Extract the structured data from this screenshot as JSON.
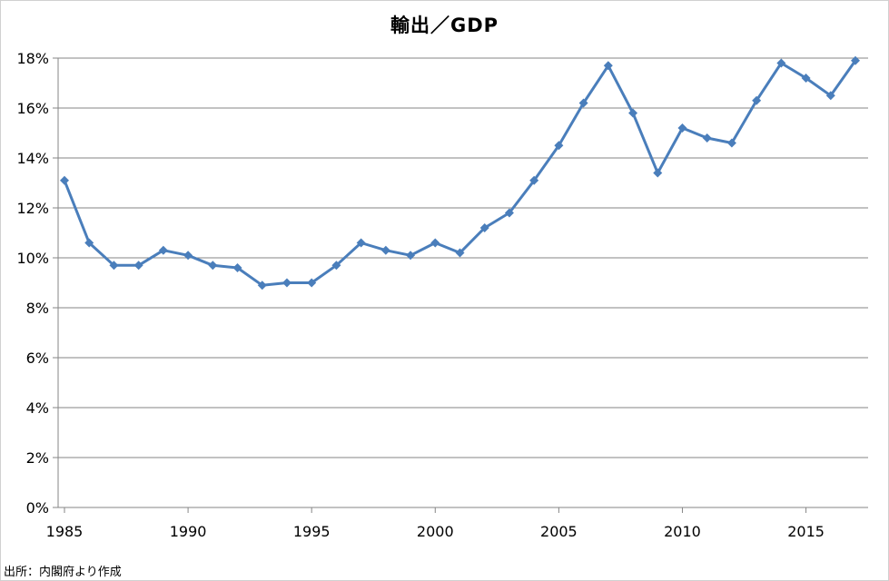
{
  "chart_data": {
    "type": "line",
    "title": "輸出／GDP",
    "xlabel": "",
    "ylabel": "",
    "x": [
      1985,
      1986,
      1987,
      1988,
      1989,
      1990,
      1991,
      1992,
      1993,
      1994,
      1995,
      1996,
      1997,
      1998,
      1999,
      2000,
      2001,
      2002,
      2003,
      2004,
      2005,
      2006,
      2007,
      2008,
      2009,
      2010,
      2011,
      2012,
      2013,
      2014,
      2015,
      2016,
      2017
    ],
    "series": [
      {
        "values": [
          13.1,
          10.6,
          9.7,
          9.7,
          10.3,
          10.1,
          9.7,
          9.6,
          8.9,
          9.0,
          9.0,
          9.7,
          10.6,
          10.3,
          10.1,
          10.6,
          10.2,
          11.2,
          11.8,
          13.1,
          14.5,
          16.2,
          17.7,
          15.8,
          13.4,
          15.2,
          14.8,
          14.6,
          16.3,
          17.8,
          17.2,
          16.5,
          17.9
        ],
        "color": "#4a7ebb",
        "marker": "diamond"
      }
    ],
    "xlim": [
      1985,
      2017
    ],
    "ylim": [
      0,
      18
    ],
    "x_ticks": [
      1985,
      1990,
      1995,
      2000,
      2005,
      2010,
      2015
    ],
    "x_tick_labels": [
      "1985",
      "1990",
      "1995",
      "2000",
      "2005",
      "2010",
      "2015"
    ],
    "y_ticks": [
      0,
      2,
      4,
      6,
      8,
      10,
      12,
      14,
      16,
      18
    ],
    "y_tick_labels": [
      "0%",
      "2%",
      "4%",
      "6%",
      "8%",
      "10%",
      "12%",
      "14%",
      "16%",
      "18%"
    ],
    "grid": true,
    "legend": "none"
  },
  "source_note": "出所：内閣府より作成",
  "colors": {
    "line": "#4a7ebb",
    "grid": "#868686",
    "axis": "#868686"
  }
}
